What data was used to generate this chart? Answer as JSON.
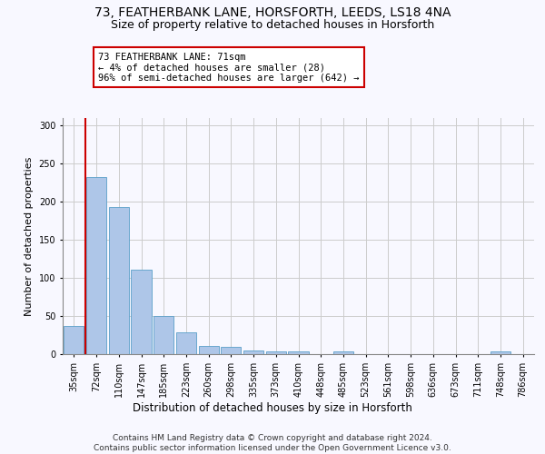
{
  "title_line1": "73, FEATHERBANK LANE, HORSFORTH, LEEDS, LS18 4NA",
  "title_line2": "Size of property relative to detached houses in Horsforth",
  "xlabel": "Distribution of detached houses by size in Horsforth",
  "ylabel": "Number of detached properties",
  "bar_labels": [
    "35sqm",
    "72sqm",
    "110sqm",
    "147sqm",
    "185sqm",
    "223sqm",
    "260sqm",
    "298sqm",
    "335sqm",
    "373sqm",
    "410sqm",
    "448sqm",
    "485sqm",
    "523sqm",
    "561sqm",
    "598sqm",
    "636sqm",
    "673sqm",
    "711sqm",
    "748sqm",
    "786sqm"
  ],
  "bar_values": [
    37,
    232,
    193,
    111,
    50,
    29,
    11,
    10,
    5,
    4,
    4,
    0,
    3,
    0,
    0,
    0,
    0,
    0,
    0,
    3,
    0
  ],
  "bar_color": "#aec6e8",
  "bar_edge_color": "#5a9fc8",
  "annotation_box_text": "73 FEATHERBANK LANE: 71sqm\n← 4% of detached houses are smaller (28)\n96% of semi-detached houses are larger (642) →",
  "annotation_box_color": "#ffffff",
  "annotation_box_edge_color": "#cc0000",
  "vline_color": "#cc0000",
  "ylim": [
    0,
    310
  ],
  "yticks": [
    0,
    50,
    100,
    150,
    200,
    250,
    300
  ],
  "grid_color": "#cccccc",
  "background_color": "#f8f8ff",
  "footer_text": "Contains HM Land Registry data © Crown copyright and database right 2024.\nContains public sector information licensed under the Open Government Licence v3.0.",
  "title_fontsize": 10,
  "subtitle_fontsize": 9,
  "xlabel_fontsize": 8.5,
  "ylabel_fontsize": 8,
  "tick_fontsize": 7,
  "annot_fontsize": 7.5,
  "footer_fontsize": 6.5
}
